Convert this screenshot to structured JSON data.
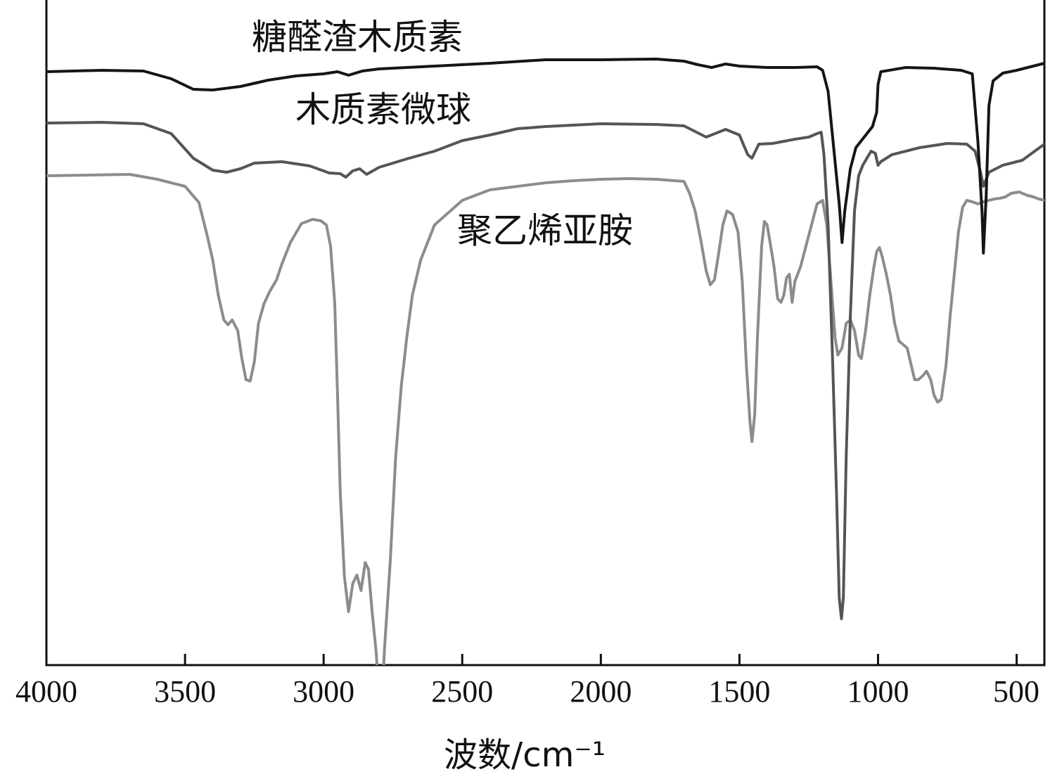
{
  "chart_data": {
    "type": "line",
    "xlabel": "波数/cm⁻¹",
    "ylabel": "",
    "xlim": [
      4000,
      400
    ],
    "x_reversed": true,
    "xticks": [
      4000,
      3500,
      3000,
      2500,
      2000,
      1500,
      1000,
      500
    ],
    "y_axis_values_shown": false,
    "grid": false,
    "legend": "none",
    "series": [
      {
        "name": "糖醛渣木质素",
        "color": "#151515",
        "points": [
          [
            4000,
            102
          ],
          [
            3800,
            100
          ],
          [
            3650,
            101
          ],
          [
            3550,
            112
          ],
          [
            3470,
            127
          ],
          [
            3400,
            128
          ],
          [
            3300,
            123
          ],
          [
            3200,
            114
          ],
          [
            3100,
            108
          ],
          [
            3000,
            105
          ],
          [
            2950,
            102
          ],
          [
            2910,
            107
          ],
          [
            2860,
            101
          ],
          [
            2800,
            98
          ],
          [
            2600,
            94
          ],
          [
            2400,
            90
          ],
          [
            2200,
            85
          ],
          [
            2000,
            85
          ],
          [
            1800,
            84
          ],
          [
            1700,
            87
          ],
          [
            1650,
            92
          ],
          [
            1600,
            96
          ],
          [
            1550,
            91
          ],
          [
            1500,
            94
          ],
          [
            1400,
            96
          ],
          [
            1300,
            96
          ],
          [
            1220,
            95
          ],
          [
            1200,
            100
          ],
          [
            1180,
            130
          ],
          [
            1160,
            210
          ],
          [
            1140,
            290
          ],
          [
            1130,
            345
          ],
          [
            1120,
            300
          ],
          [
            1100,
            240
          ],
          [
            1080,
            210
          ],
          [
            1060,
            200
          ],
          [
            1040,
            190
          ],
          [
            1020,
            180
          ],
          [
            1005,
            160
          ],
          [
            1000,
            120
          ],
          [
            990,
            102
          ],
          [
            900,
            96
          ],
          [
            800,
            97
          ],
          [
            700,
            100
          ],
          [
            660,
            105
          ],
          [
            640,
            200
          ],
          [
            625,
            300
          ],
          [
            620,
            360
          ],
          [
            610,
            280
          ],
          [
            600,
            150
          ],
          [
            585,
            115
          ],
          [
            550,
            104
          ],
          [
            500,
            100
          ],
          [
            450,
            95
          ],
          [
            400,
            90
          ]
        ]
      },
      {
        "name": "木质素微球",
        "color": "#555555",
        "points": [
          [
            4000,
            175
          ],
          [
            3800,
            174
          ],
          [
            3650,
            176
          ],
          [
            3550,
            190
          ],
          [
            3470,
            225
          ],
          [
            3400,
            242
          ],
          [
            3350,
            245
          ],
          [
            3300,
            240
          ],
          [
            3250,
            232
          ],
          [
            3150,
            230
          ],
          [
            3050,
            236
          ],
          [
            2980,
            246
          ],
          [
            2940,
            247
          ],
          [
            2920,
            252
          ],
          [
            2895,
            243
          ],
          [
            2870,
            240
          ],
          [
            2845,
            248
          ],
          [
            2800,
            238
          ],
          [
            2700,
            226
          ],
          [
            2600,
            215
          ],
          [
            2500,
            200
          ],
          [
            2400,
            192
          ],
          [
            2300,
            183
          ],
          [
            2200,
            180
          ],
          [
            2100,
            178
          ],
          [
            2000,
            176
          ],
          [
            1800,
            177
          ],
          [
            1700,
            179
          ],
          [
            1620,
            195
          ],
          [
            1550,
            184
          ],
          [
            1500,
            192
          ],
          [
            1470,
            220
          ],
          [
            1455,
            225
          ],
          [
            1430,
            205
          ],
          [
            1380,
            204
          ],
          [
            1300,
            198
          ],
          [
            1250,
            195
          ],
          [
            1220,
            190
          ],
          [
            1205,
            188
          ],
          [
            1195,
            220
          ],
          [
            1180,
            320
          ],
          [
            1165,
            500
          ],
          [
            1150,
            700
          ],
          [
            1140,
            850
          ],
          [
            1132,
            880
          ],
          [
            1125,
            850
          ],
          [
            1115,
            650
          ],
          [
            1100,
            450
          ],
          [
            1085,
            300
          ],
          [
            1070,
            250
          ],
          [
            1055,
            235
          ],
          [
            1040,
            225
          ],
          [
            1025,
            215
          ],
          [
            1010,
            218
          ],
          [
            1000,
            235
          ],
          [
            990,
            230
          ],
          [
            950,
            220
          ],
          [
            850,
            210
          ],
          [
            750,
            204
          ],
          [
            680,
            205
          ],
          [
            650,
            215
          ],
          [
            630,
            245
          ],
          [
            620,
            265
          ],
          [
            600,
            245
          ],
          [
            550,
            235
          ],
          [
            480,
            228
          ],
          [
            400,
            205
          ]
        ]
      },
      {
        "name": "聚乙烯亚胺",
        "color": "#8c8c8c",
        "points": [
          [
            4000,
            250
          ],
          [
            3700,
            248
          ],
          [
            3600,
            255
          ],
          [
            3500,
            265
          ],
          [
            3450,
            288
          ],
          [
            3420,
            335
          ],
          [
            3400,
            370
          ],
          [
            3380,
            420
          ],
          [
            3360,
            455
          ],
          [
            3345,
            462
          ],
          [
            3330,
            455
          ],
          [
            3310,
            470
          ],
          [
            3295,
            510
          ],
          [
            3280,
            540
          ],
          [
            3265,
            542
          ],
          [
            3250,
            515
          ],
          [
            3235,
            460
          ],
          [
            3215,
            432
          ],
          [
            3195,
            415
          ],
          [
            3170,
            398
          ],
          [
            3150,
            375
          ],
          [
            3120,
            345
          ],
          [
            3080,
            318
          ],
          [
            3040,
            312
          ],
          [
            3010,
            314
          ],
          [
            2990,
            320
          ],
          [
            2975,
            350
          ],
          [
            2960,
            430
          ],
          [
            2950,
            560
          ],
          [
            2940,
            700
          ],
          [
            2925,
            820
          ],
          [
            2910,
            870
          ],
          [
            2895,
            830
          ],
          [
            2880,
            818
          ],
          [
            2865,
            840
          ],
          [
            2850,
            800
          ],
          [
            2838,
            810
          ],
          [
            2825,
            870
          ],
          [
            2810,
            930
          ],
          [
            2800,
            1000
          ],
          [
            2790,
            1000
          ],
          [
            2780,
            920
          ],
          [
            2760,
            800
          ],
          [
            2740,
            650
          ],
          [
            2720,
            550
          ],
          [
            2700,
            480
          ],
          [
            2680,
            420
          ],
          [
            2650,
            370
          ],
          [
            2600,
            320
          ],
          [
            2500,
            285
          ],
          [
            2400,
            270
          ],
          [
            2300,
            265
          ],
          [
            2200,
            260
          ],
          [
            2100,
            257
          ],
          [
            2000,
            255
          ],
          [
            1900,
            254
          ],
          [
            1800,
            255
          ],
          [
            1700,
            258
          ],
          [
            1680,
            275
          ],
          [
            1660,
            300
          ],
          [
            1640,
            340
          ],
          [
            1620,
            385
          ],
          [
            1605,
            405
          ],
          [
            1590,
            398
          ],
          [
            1575,
            360
          ],
          [
            1560,
            320
          ],
          [
            1545,
            300
          ],
          [
            1525,
            305
          ],
          [
            1505,
            330
          ],
          [
            1490,
            400
          ],
          [
            1475,
            520
          ],
          [
            1462,
            600
          ],
          [
            1455,
            628
          ],
          [
            1445,
            590
          ],
          [
            1435,
            480
          ],
          [
            1420,
            350
          ],
          [
            1410,
            315
          ],
          [
            1400,
            320
          ],
          [
            1385,
            355
          ],
          [
            1375,
            380
          ],
          [
            1362,
            425
          ],
          [
            1350,
            430
          ],
          [
            1340,
            420
          ],
          [
            1330,
            395
          ],
          [
            1320,
            390
          ],
          [
            1310,
            430
          ],
          [
            1300,
            400
          ],
          [
            1280,
            380
          ],
          [
            1260,
            350
          ],
          [
            1240,
            320
          ],
          [
            1220,
            290
          ],
          [
            1200,
            285
          ],
          [
            1185,
            320
          ],
          [
            1170,
            400
          ],
          [
            1155,
            480
          ],
          [
            1145,
            505
          ],
          [
            1130,
            495
          ],
          [
            1115,
            460
          ],
          [
            1100,
            455
          ],
          [
            1085,
            470
          ],
          [
            1070,
            505
          ],
          [
            1060,
            510
          ],
          [
            1045,
            470
          ],
          [
            1030,
            420
          ],
          [
            1015,
            380
          ],
          [
            1005,
            358
          ],
          [
            995,
            352
          ],
          [
            985,
            365
          ],
          [
            970,
            390
          ],
          [
            955,
            420
          ],
          [
            940,
            460
          ],
          [
            925,
            485
          ],
          [
            910,
            490
          ],
          [
            895,
            495
          ],
          [
            880,
            520
          ],
          [
            868,
            540
          ],
          [
            855,
            540
          ],
          [
            840,
            535
          ],
          [
            825,
            528
          ],
          [
            810,
            540
          ],
          [
            798,
            562
          ],
          [
            785,
            572
          ],
          [
            772,
            568
          ],
          [
            755,
            520
          ],
          [
            740,
            450
          ],
          [
            725,
            390
          ],
          [
            710,
            330
          ],
          [
            695,
            295
          ],
          [
            680,
            285
          ],
          [
            660,
            287
          ],
          [
            640,
            290
          ],
          [
            620,
            287
          ],
          [
            600,
            285
          ],
          [
            580,
            283
          ],
          [
            560,
            282
          ],
          [
            540,
            280
          ],
          [
            520,
            275
          ],
          [
            505,
            274
          ],
          [
            490,
            273
          ],
          [
            480,
            275
          ],
          [
            460,
            278
          ],
          [
            440,
            280
          ],
          [
            420,
            283
          ],
          [
            400,
            285
          ]
        ]
      }
    ]
  }
}
